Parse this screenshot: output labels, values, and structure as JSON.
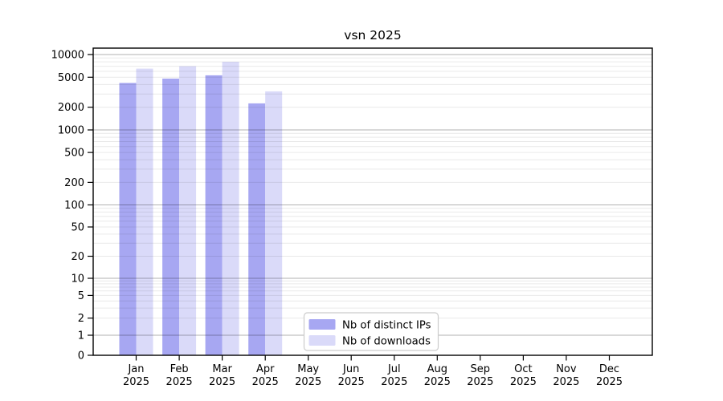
{
  "page": {
    "background": "#ffffff"
  },
  "chart_data": {
    "type": "bar",
    "title": "vsn 2025",
    "y_scale": "log-with-zero-baseline",
    "ylim": [
      0,
      10000
    ],
    "grid": "horizontal, major decades dark + log minors light, drawn over bars",
    "legend_position": "inside-bottom-center",
    "y_ticks": [
      0,
      1,
      2,
      5,
      10,
      20,
      50,
      100,
      200,
      500,
      1000,
      2000,
      5000,
      10000
    ],
    "categories": [
      {
        "month": "Jan",
        "year": "2025"
      },
      {
        "month": "Feb",
        "year": "2025"
      },
      {
        "month": "Mar",
        "year": "2025"
      },
      {
        "month": "Apr",
        "year": "2025"
      },
      {
        "month": "May",
        "year": "2025"
      },
      {
        "month": "Jun",
        "year": "2025"
      },
      {
        "month": "Jul",
        "year": "2025"
      },
      {
        "month": "Aug",
        "year": "2025"
      },
      {
        "month": "Sep",
        "year": "2025"
      },
      {
        "month": "Oct",
        "year": "2025"
      },
      {
        "month": "Nov",
        "year": "2025"
      },
      {
        "month": "Dec",
        "year": "2025"
      }
    ],
    "series": [
      {
        "name": "Nb of distinct IPs",
        "color": "#a7a7f2",
        "values": [
          4200,
          4800,
          5300,
          2250,
          null,
          null,
          null,
          null,
          null,
          null,
          null,
          null
        ]
      },
      {
        "name": "Nb of downloads",
        "color": "#dadaf9",
        "values": [
          6500,
          7000,
          8000,
          3250,
          null,
          null,
          null,
          null,
          null,
          null,
          null,
          null
        ]
      }
    ]
  }
}
